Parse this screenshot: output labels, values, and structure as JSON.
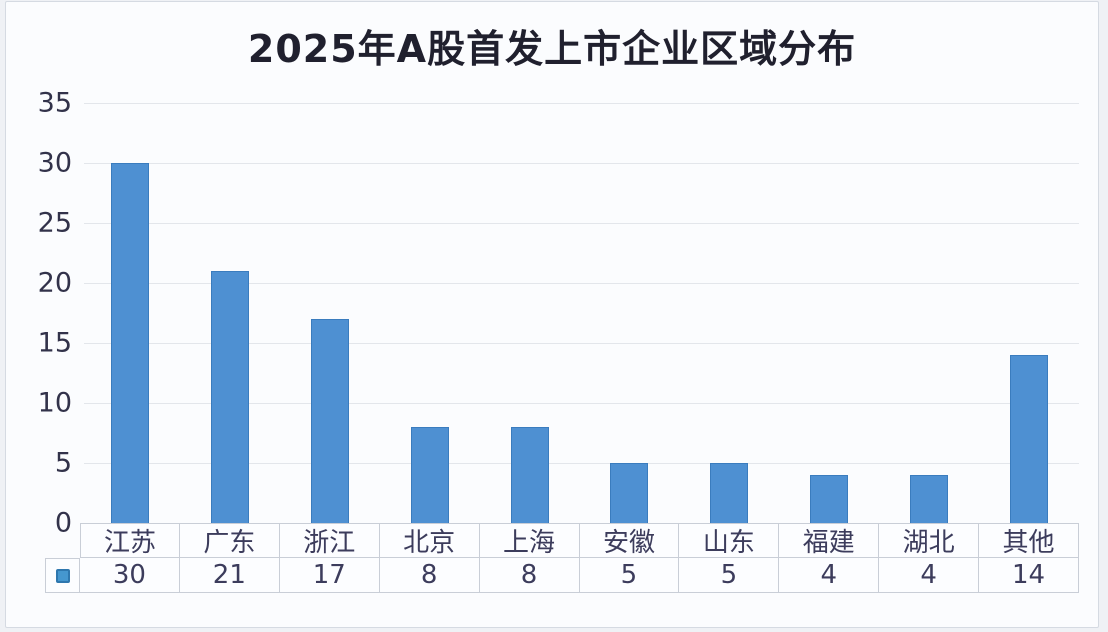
{
  "page": {
    "title": "2025年A股首发上市企业区域分布"
  },
  "colors": {
    "bar_fill": "#4E90D2",
    "bar_border": "#3A7CBE",
    "legend_fill": "#4597CF",
    "legend_border": "#2E77AE",
    "gridline": "#E3E6EB",
    "table_border": "#C9CED7",
    "title_text": "#20202E",
    "axis_text": "#32324A",
    "table_text": "#3C3C5C",
    "card_background": "#FBFCFE"
  },
  "chart_data": {
    "type": "bar",
    "title": "2025年A股首发上市企业区域分布",
    "categories": [
      "江苏",
      "广东",
      "浙江",
      "北京",
      "上海",
      "安徽",
      "山东",
      "福建",
      "湖北",
      "其他"
    ],
    "values": [
      30,
      21,
      17,
      8,
      8,
      5,
      5,
      4,
      4,
      14
    ],
    "xlabel": "",
    "ylabel": "",
    "ylim": [
      0,
      35
    ],
    "yticks": [
      35,
      30,
      25,
      20,
      15,
      10,
      5,
      0
    ],
    "grid": "horizontal",
    "legend_position": "data-table-left",
    "data_table_shown": true
  }
}
